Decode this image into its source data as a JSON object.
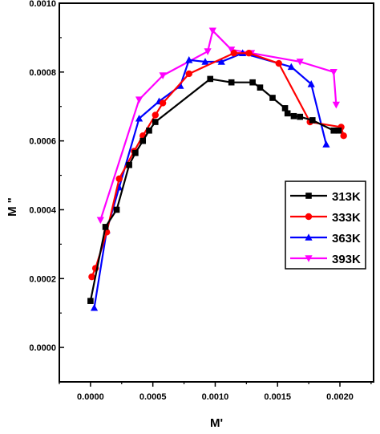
{
  "chart_data": {
    "type": "line",
    "title": "",
    "xlabel": "M'",
    "ylabel": "M \"",
    "xlim": [
      -0.00025,
      0.00227
    ],
    "ylim": [
      -0.0001,
      0.001
    ],
    "xticks": [
      0.0,
      0.0005,
      0.001,
      0.0015,
      0.002
    ],
    "xtick_labels": [
      "0.0000",
      "0.0005",
      "0.0010",
      "0.0015",
      "0.0020"
    ],
    "yticks": [
      0.0,
      0.0002,
      0.0004,
      0.0006,
      0.0008,
      0.001
    ],
    "ytick_labels": [
      "0.0000",
      "0.0002",
      "0.0004",
      "0.0006",
      "0.0008",
      "0.0010"
    ],
    "grid": false,
    "legend_position": "right-middle",
    "series": [
      {
        "name": "313K",
        "color": "#000000",
        "marker": "square",
        "x": [
          0.0,
          0.00012,
          0.00021,
          0.00031,
          0.00036,
          0.00042,
          0.00047,
          0.00052,
          0.00096,
          0.00113,
          0.0013,
          0.00136,
          0.00146,
          0.00156,
          0.00158,
          0.00163,
          0.00168,
          0.00178,
          0.00195,
          0.00199
        ],
        "y": [
          0.000135,
          0.00035,
          0.0004,
          0.00053,
          0.000565,
          0.0006,
          0.00063,
          0.000655,
          0.00078,
          0.00077,
          0.00077,
          0.000755,
          0.000725,
          0.000695,
          0.00068,
          0.000672,
          0.00067,
          0.00066,
          0.00063,
          0.00063
        ]
      },
      {
        "name": "333K",
        "color": "#ff0000",
        "marker": "circle",
        "x": [
          1e-05,
          4e-05,
          0.00013,
          0.00023,
          0.00035,
          0.00042,
          0.00052,
          0.00058,
          0.00079,
          0.00115,
          0.00127,
          0.00151,
          0.00176,
          0.00201,
          0.00203
        ],
        "y": [
          0.000205,
          0.00023,
          0.000335,
          0.00049,
          0.00057,
          0.000615,
          0.000675,
          0.00071,
          0.000795,
          0.000855,
          0.000855,
          0.000825,
          0.000655,
          0.00064,
          0.000615
        ]
      },
      {
        "name": "363K",
        "color": "#0000ff",
        "marker": "triangle-up",
        "x": [
          3e-05,
          0.00013,
          0.00023,
          0.00039,
          0.00055,
          0.00072,
          0.00079,
          0.00092,
          0.00105,
          0.00122,
          0.00161,
          0.00177,
          0.00189
        ],
        "y": [
          0.000115,
          0.00034,
          0.000465,
          0.000665,
          0.000715,
          0.00076,
          0.000835,
          0.00083,
          0.00083,
          0.000855,
          0.000815,
          0.000765,
          0.00059
        ]
      },
      {
        "name": "393K",
        "color": "#ff00ff",
        "marker": "triangle-down",
        "x": [
          8e-05,
          0.00039,
          0.00058,
          0.00094,
          0.00098,
          0.00113,
          0.00129,
          0.00168,
          0.00195,
          0.00197
        ],
        "y": [
          0.00037,
          0.00072,
          0.00079,
          0.00086,
          0.00092,
          0.000865,
          0.000855,
          0.00083,
          0.0008,
          0.000705
        ]
      }
    ]
  }
}
